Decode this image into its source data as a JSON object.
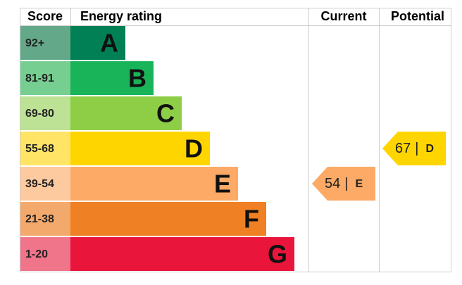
{
  "header": {
    "score": "Score",
    "rating": "Energy rating",
    "current": "Current",
    "potential": "Potential"
  },
  "bands": [
    {
      "score": "92+",
      "letter": "A",
      "color": "#008054",
      "score_color": "#64a88a"
    },
    {
      "score": "81-91",
      "letter": "B",
      "color": "#19b459",
      "score_color": "#76cf90"
    },
    {
      "score": "69-80",
      "letter": "C",
      "color": "#8dce46",
      "score_color": "#bde195"
    },
    {
      "score": "55-68",
      "letter": "D",
      "color": "#ffd500",
      "score_color": "#ffe466"
    },
    {
      "score": "39-54",
      "letter": "E",
      "color": "#fcaa65",
      "score_color": "#fdcaa0"
    },
    {
      "score": "21-38",
      "letter": "F",
      "color": "#ef8023",
      "score_color": "#f4a96c"
    },
    {
      "score": "1-20",
      "letter": "G",
      "color": "#e9153b",
      "score_color": "#f0748a"
    }
  ],
  "current": {
    "value": 54,
    "separator": "|",
    "rating": "E"
  },
  "potential": {
    "value": 67,
    "separator": "|",
    "rating": "D"
  }
}
